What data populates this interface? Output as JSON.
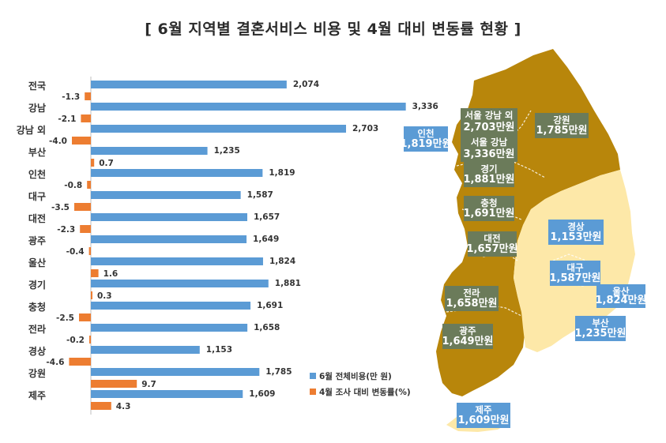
{
  "title": "[ 6월 지역별 결혼서비스 비용 및 4월 대비 변동률 현황 ]",
  "colors": {
    "cost": "#5b9bd5",
    "change": "#ed7d31",
    "map_dark": "#b8860b",
    "map_light": "#fde8a8",
    "box_dark": "#6b7b5a",
    "box_blue": "#5b9bd5"
  },
  "chart_data": {
    "type": "bar",
    "categories": [
      "전국",
      "강남",
      "강남 외",
      "부산",
      "인천",
      "대구",
      "대전",
      "광주",
      "울산",
      "경기",
      "충청",
      "전라",
      "경상",
      "강원",
      "제주"
    ],
    "series": [
      {
        "name": "6월 전체비용(만 원)",
        "values": [
          2074,
          3336,
          2703,
          1235,
          1819,
          1587,
          1657,
          1649,
          1824,
          1881,
          1691,
          1658,
          1153,
          1785,
          1609
        ],
        "labels": [
          "2,074",
          "3,336",
          "2,703",
          "1,235",
          "1,819",
          "1,587",
          "1,657",
          "1,649",
          "1,824",
          "1,881",
          "1,691",
          "1,658",
          "1,153",
          "1,785",
          "1,609"
        ]
      },
      {
        "name": "4월 조사 대비 변동률(%)",
        "values": [
          -1.3,
          -2.1,
          -4.0,
          0.7,
          -0.8,
          -3.5,
          -2.3,
          -0.4,
          1.6,
          0.3,
          -2.5,
          -0.2,
          -4.6,
          9.7,
          4.3
        ],
        "labels": [
          "-1.3",
          "-2.1",
          "-4.0",
          "0.7",
          "-0.8",
          "-3.5",
          "-2.3",
          "-0.4",
          "1.6",
          "0.3",
          "-2.5",
          "-0.2",
          "-4.6",
          "9.7",
          "4.3"
        ]
      }
    ],
    "legend_position": "bottom-right"
  },
  "map": {
    "regions": [
      {
        "label": "서울 강남 외",
        "value": "2,703만원",
        "style": "dark"
      },
      {
        "label": "서울 강남",
        "value": "3,336만원",
        "style": "dark"
      },
      {
        "label": "인천",
        "value": "1,819만원",
        "style": "blue"
      },
      {
        "label": "강원",
        "value": "1,785만원",
        "style": "dark"
      },
      {
        "label": "경기",
        "value": "1,881만원",
        "style": "dark"
      },
      {
        "label": "충청",
        "value": "1,691만원",
        "style": "dark"
      },
      {
        "label": "대전",
        "value": "1,657만원",
        "style": "dark"
      },
      {
        "label": "경상",
        "value": "1,153만원",
        "style": "blue"
      },
      {
        "label": "대구",
        "value": "1,587만원",
        "style": "blue"
      },
      {
        "label": "울산",
        "value": "1,824만원",
        "style": "blue"
      },
      {
        "label": "전라",
        "value": "1,658만원",
        "style": "dark"
      },
      {
        "label": "광주",
        "value": "1,649만원",
        "style": "dark"
      },
      {
        "label": "부산",
        "value": "1,235만원",
        "style": "blue"
      },
      {
        "label": "제주",
        "value": "1,609만원",
        "style": "blue"
      }
    ]
  }
}
